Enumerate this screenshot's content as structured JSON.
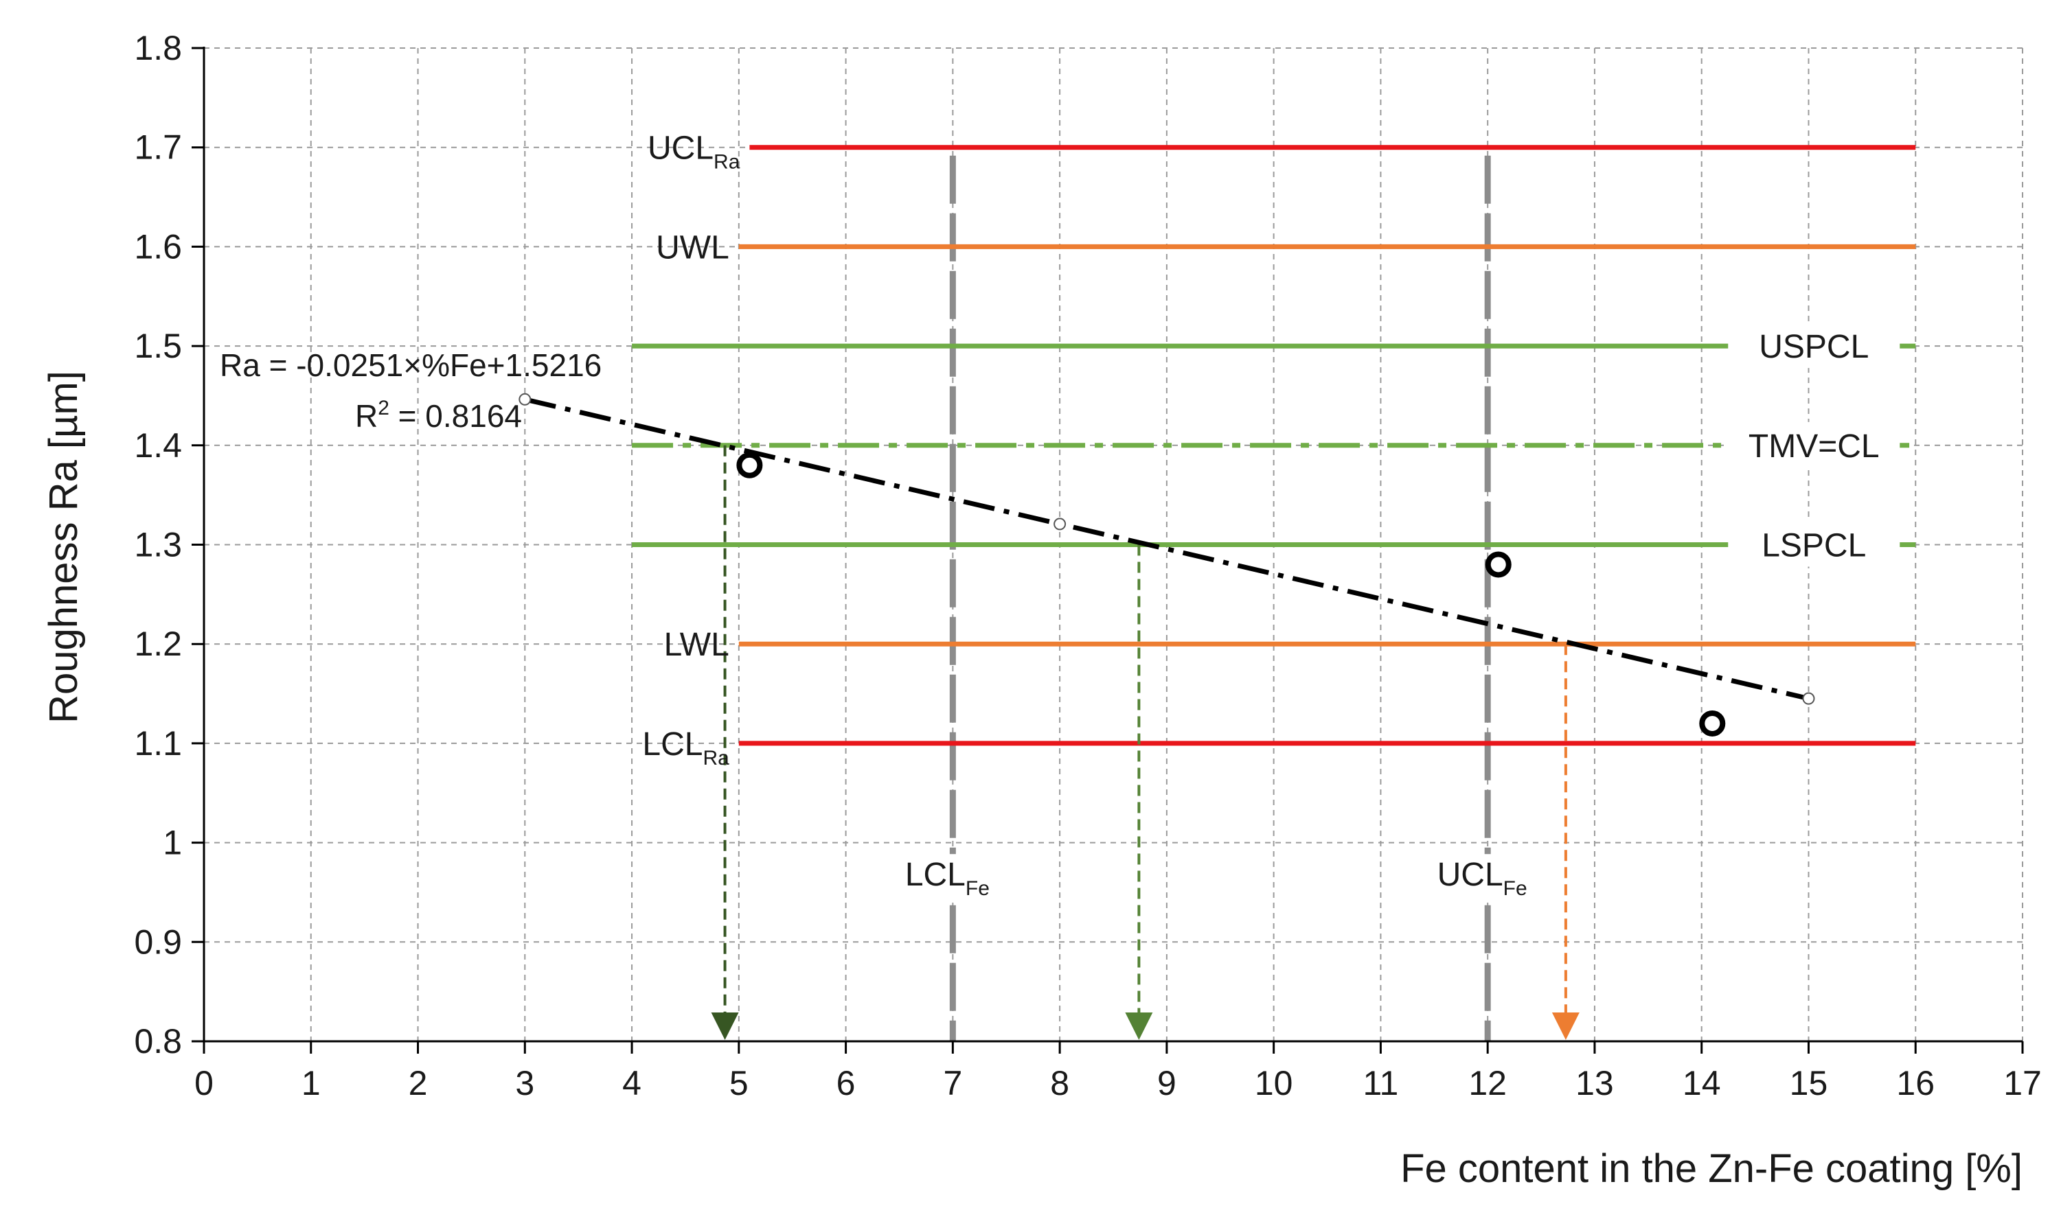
{
  "chart_data": {
    "type": "scatter",
    "xlabel": "Fe content in the Zn-Fe coating [%]",
    "ylabel": "Roughness Ra [µm]",
    "xlim": [
      0,
      17
    ],
    "ylim": [
      0.8,
      1.8
    ],
    "xticks": [
      0,
      1,
      2,
      3,
      4,
      5,
      6,
      7,
      8,
      9,
      10,
      11,
      12,
      13,
      14,
      15,
      16,
      17
    ],
    "yticks": [
      "0.8",
      "0.9",
      "1",
      "1.1",
      "1.2",
      "1.3",
      "1.4",
      "1.5",
      "1.6",
      "1.7",
      "1.8"
    ],
    "grid": true,
    "points": [
      {
        "x": 5.1,
        "y": 1.38
      },
      {
        "x": 12.1,
        "y": 1.28
      },
      {
        "x": 14.1,
        "y": 1.12
      }
    ],
    "trendline": {
      "x_from": 3,
      "x_to": 15,
      "slope": -0.0251,
      "intercept": 1.5216,
      "marker_xs": [
        3,
        8,
        15
      ],
      "equation": "Ra = -0.0251×%Fe+1.5216",
      "r2_label": "R",
      "r2_sup": "2",
      "r2_value": " = 0.8164"
    },
    "horizontal_lines": [
      {
        "id": "ucl-ra",
        "y": 1.7,
        "x_from": 5.1,
        "x_to": 16,
        "color": "#e8161b",
        "style": "solid",
        "label": "UCL",
        "sub": "Ra",
        "label_side": "left"
      },
      {
        "id": "uwl",
        "y": 1.6,
        "x_from": 5.0,
        "x_to": 16,
        "color": "#ed7d31",
        "style": "solid",
        "label": "UWL",
        "sub": "",
        "label_side": "left"
      },
      {
        "id": "uspcl",
        "y": 1.5,
        "x_from": 4,
        "x_to": 16,
        "color": "#70ad47",
        "style": "solid",
        "label": "USPCL",
        "sub": "",
        "label_side": "right"
      },
      {
        "id": "tmv-cl",
        "y": 1.4,
        "x_from": 4,
        "x_to": 16,
        "color": "#70ad47",
        "style": "dashdot",
        "label": "TMV=CL",
        "sub": "",
        "label_side": "right"
      },
      {
        "id": "lspcl",
        "y": 1.3,
        "x_from": 4,
        "x_to": 16,
        "color": "#70ad47",
        "style": "solid",
        "label": "LSPCL",
        "sub": "",
        "label_side": "right"
      },
      {
        "id": "lwl",
        "y": 1.2,
        "x_from": 5.0,
        "x_to": 16,
        "color": "#ed7d31",
        "style": "solid",
        "label": "LWL",
        "sub": "",
        "label_side": "left"
      },
      {
        "id": "lcl-ra",
        "y": 1.1,
        "x_from": 5.0,
        "x_to": 16,
        "color": "#e8161b",
        "style": "solid",
        "label": "LCL",
        "sub": "Ra",
        "label_side": "left"
      }
    ],
    "vertical_lines": [
      {
        "id": "lcl-fe",
        "x": 7,
        "color": "#8c8c8c",
        "label": "LCL",
        "sub": "Fe"
      },
      {
        "id": "ucl-fe",
        "x": 12,
        "color": "#8c8c8c",
        "label": "UCL",
        "sub": "Fe"
      }
    ],
    "arrows": [
      {
        "id": "arrow-dark-green",
        "x": 4.87,
        "y_from": 1.4,
        "y_to": 0.8,
        "color": "#375623"
      },
      {
        "id": "arrow-green",
        "x": 8.74,
        "y_from": 1.3,
        "y_to": 0.8,
        "color": "#548235"
      },
      {
        "id": "arrow-orange",
        "x": 12.73,
        "y_from": 1.2,
        "y_to": 0.8,
        "color": "#ed7d31"
      }
    ]
  }
}
